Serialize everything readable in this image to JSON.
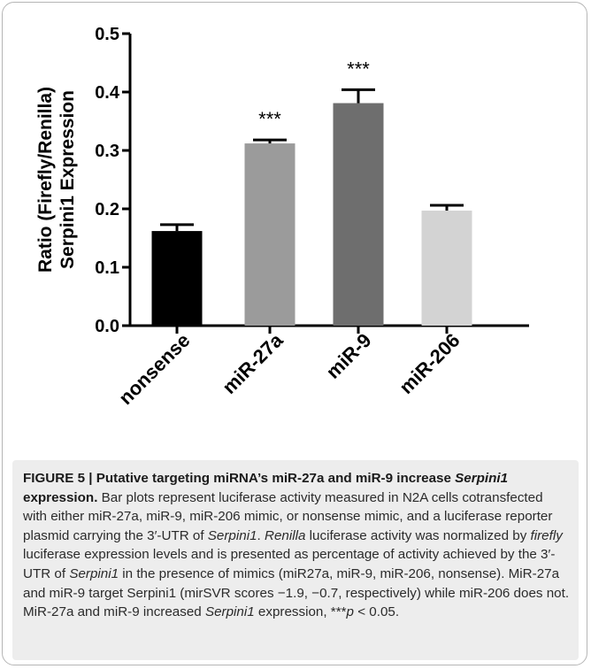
{
  "chart_data": {
    "type": "bar",
    "categories": [
      "nonsense",
      "miR-27a",
      "miR-9",
      "miR-206"
    ],
    "values": [
      0.162,
      0.312,
      0.381,
      0.197
    ],
    "errors": [
      0.011,
      0.006,
      0.023,
      0.009
    ],
    "significance": [
      "",
      "***",
      "***",
      ""
    ],
    "bar_colors": [
      "#000000",
      "#9b9b9b",
      "#6e6e6e",
      "#d3d3d3"
    ],
    "ylabel_line1": "Ratio (Firefly/Renilla)",
    "ylabel_line2": "Serpini1 Expression",
    "xlabel": "",
    "ylim": [
      0,
      0.5
    ],
    "yticks": [
      "0.0",
      "0.1",
      "0.2",
      "0.3",
      "0.4",
      "0.5"
    ],
    "grid": false
  },
  "caption": {
    "label": "FIGURE 5 | Putative targeting miRNA’s miR-27a and miR-9 increase",
    "title_gene": "Serpini1",
    "title_rest": " expression.",
    "s1": " Bar plots represent luciferase activity measured in N2A cells cotransfected with either miR-27a, miR-9, miR-206 mimic, or nonsense mimic, and a luciferase reporter plasmid carrying the 3′-UTR of ",
    "s1_gene": "Serpini1",
    "s1_end": ".",
    "s2_italic": "Renilla",
    "s2a": " luciferase activity was normalized by ",
    "s2_italic2": "firefly",
    "s2b": " luciferase expression levels and is presented as percentage of activity achieved by the 3′-UTR of ",
    "s2_gene": "Serpini1",
    "s2c": " in the presence of mimics (miR27a, miR-9, miR-206, nonsense). MiR-27a and miR-9 target Serpini1 (mirSVR scores −1.9, −0.7, respectively) while miR-206 does not. MiR-27a and miR-9 increased ",
    "s3_gene": "Serpini1",
    "s3a": " expression, ***",
    "s3_p": "p",
    "s3b": " < 0.05."
  }
}
